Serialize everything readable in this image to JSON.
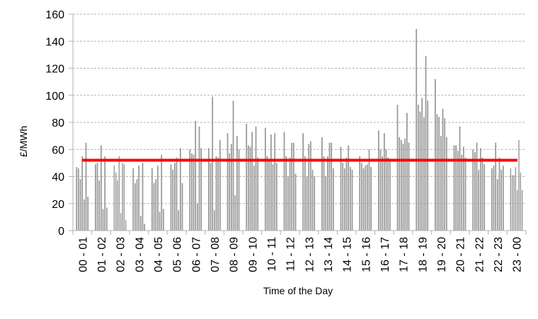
{
  "chart_data": {
    "type": "bar",
    "title": "",
    "xlabel": "Time of the Day",
    "ylabel": "£/MWh",
    "ylim": [
      0,
      160
    ],
    "yticks": [
      0,
      20,
      40,
      60,
      80,
      100,
      120,
      140,
      160
    ],
    "grid": true,
    "categories": [
      "00 - 01",
      "01 - 02",
      "02 - 03",
      "03 - 04",
      "04 - 05",
      "05 - 06",
      "06 - 07",
      "07 - 08",
      "08 - 09",
      "09 - 10",
      "10 - 11",
      "11 - 12",
      "12 - 13",
      "13 - 14",
      "14 - 15",
      "15 - 16",
      "16 - 17",
      "17 - 18",
      "18 - 19",
      "19 - 20",
      "20 - 21",
      "21 - 22",
      "22 - 23",
      "23 - 00"
    ],
    "series": [
      {
        "type": "bar",
        "color": "#999999",
        "values": [
          [
            47,
            46,
            38,
            55,
            23,
            65,
            25
          ],
          [
            49,
            50,
            37,
            63,
            16,
            55,
            17
          ],
          [
            48,
            43,
            37,
            55,
            13,
            50,
            49,
            8
          ],
          [
            46,
            35,
            38,
            48,
            11,
            50,
            5
          ],
          [
            46,
            35,
            38,
            48,
            14,
            56,
            16
          ],
          [
            49,
            45,
            50,
            54,
            15,
            61,
            35
          ],
          [
            60,
            57,
            56,
            81,
            20,
            77,
            61
          ],
          [
            61,
            50,
            99,
            15,
            55,
            54,
            67
          ],
          [
            72,
            57,
            64,
            96,
            26,
            70,
            60
          ],
          [
            79,
            63,
            62,
            73,
            48,
            77,
            54
          ],
          [
            76,
            55,
            51,
            71,
            49,
            72,
            50
          ],
          [
            73,
            55,
            40,
            54,
            65,
            65,
            42
          ],
          [
            72,
            55,
            40,
            64,
            66,
            45,
            40
          ],
          [
            69,
            55,
            40,
            55,
            65,
            65,
            46
          ],
          [
            62,
            50,
            46,
            54,
            63,
            47,
            45
          ],
          [
            55,
            50,
            46,
            48,
            49,
            60,
            47
          ],
          [
            74,
            60,
            55,
            72,
            60,
            54,
            52
          ],
          [
            93,
            69,
            67,
            64,
            68,
            87,
            65
          ],
          [
            149,
            93,
            88,
            98,
            84,
            129,
            96
          ],
          [
            112,
            86,
            84,
            70,
            90,
            83,
            69
          ],
          [
            63,
            63,
            59,
            77,
            56,
            62,
            54
          ],
          [
            60,
            58,
            65,
            45,
            61,
            54,
            49
          ],
          [
            46,
            48,
            65,
            38,
            54,
            45,
            48
          ],
          [
            46,
            41,
            41,
            47,
            30,
            67,
            43,
            30
          ]
        ]
      },
      {
        "type": "line",
        "color": "#ff0000",
        "value": 52
      }
    ]
  }
}
